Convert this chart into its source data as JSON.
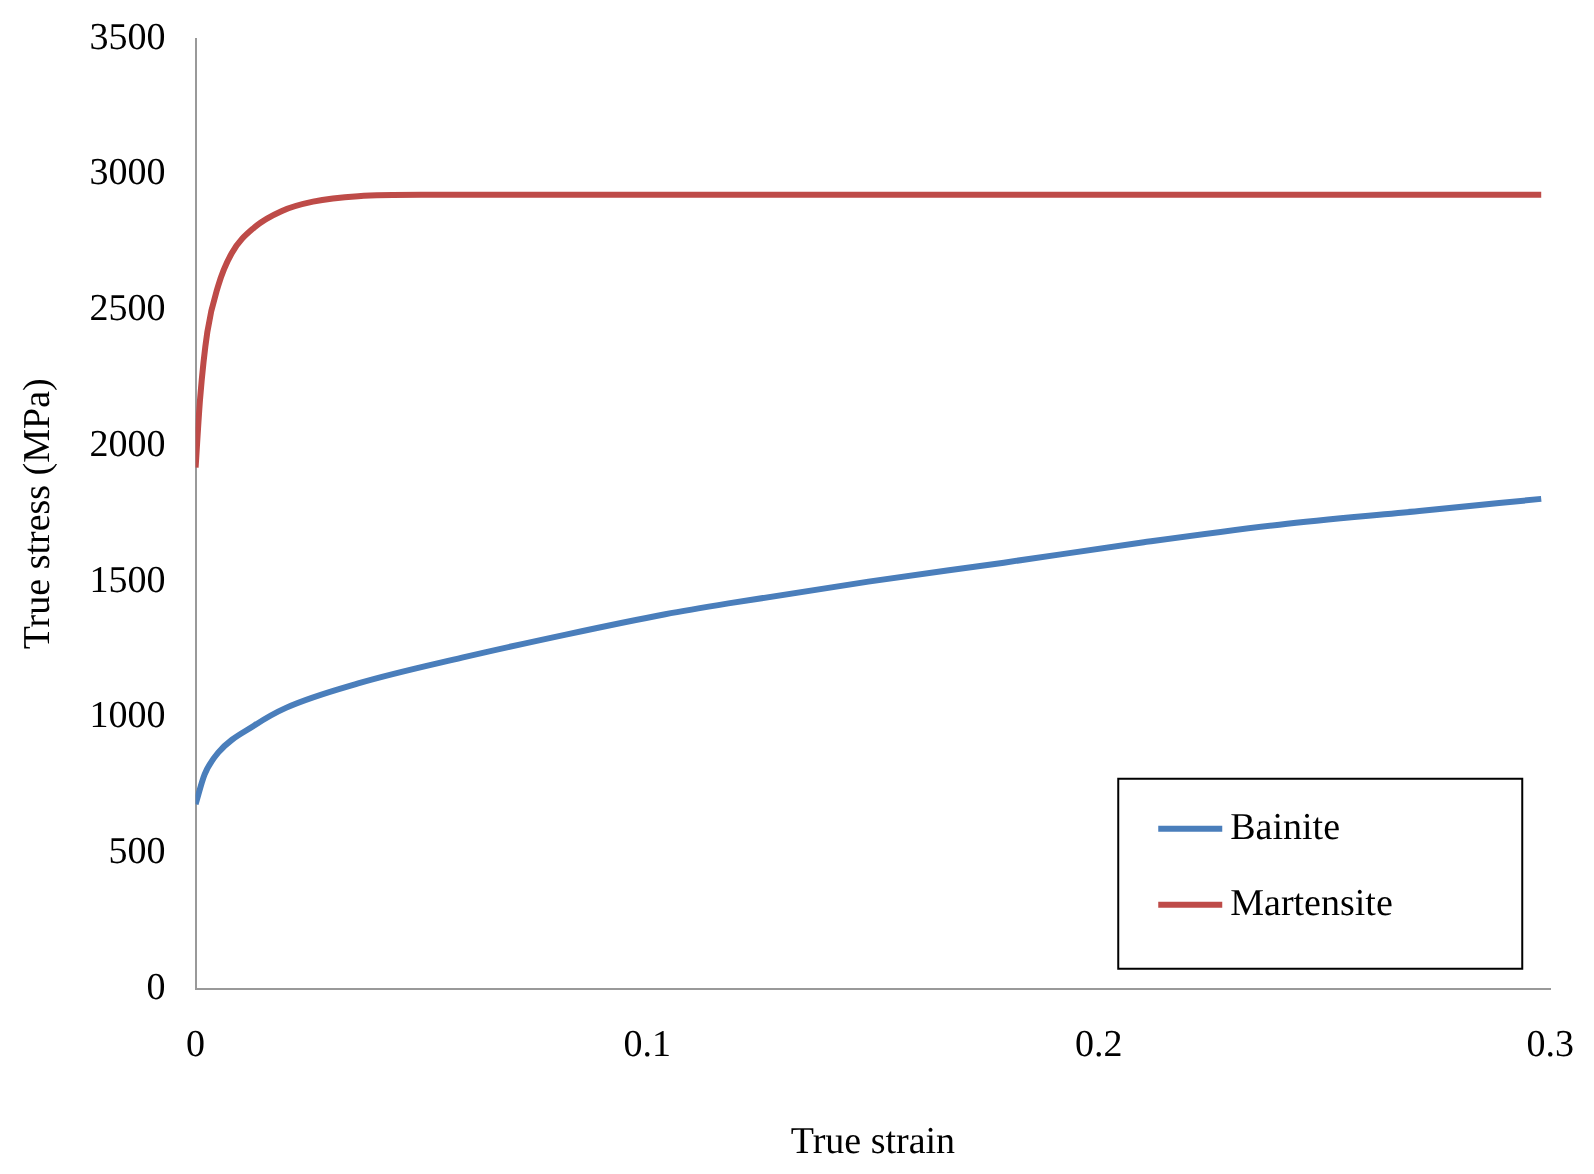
{
  "chart_data": {
    "type": "line",
    "xlabel": "True strain",
    "ylabel": "True stress (MPa)",
    "xlim": [
      0,
      0.3
    ],
    "xticks": [
      0,
      0.1,
      0.2,
      0.3
    ],
    "ylim": [
      0,
      3500
    ],
    "yticks": [
      0,
      500,
      1000,
      1500,
      2000,
      2500,
      3000,
      3500
    ],
    "grid": false,
    "legend": "bottom right",
    "marker": "none",
    "line_style": "solid",
    "series": [
      {
        "name": "Bainite",
        "color": "#4a7ebb",
        "x": [
          0,
          0.002,
          0.005,
          0.013,
          0.02,
          0.036,
          0.059,
          0.082,
          0.104,
          0.118,
          0.149,
          0.179,
          0.21,
          0.24,
          0.271,
          0.298
        ],
        "values": [
          680,
          790,
          870,
          970,
          1035,
          1125,
          1220,
          1305,
          1380,
          1420,
          1500,
          1570,
          1645,
          1710,
          1760,
          1805
        ]
      },
      {
        "name": "Martensite",
        "color": "#be4b48",
        "x": [
          0,
          0.001,
          0.0026,
          0.005,
          0.008,
          0.013,
          0.019,
          0.026,
          0.036,
          0.05,
          0.1,
          0.2,
          0.298
        ],
        "values": [
          1920,
          2175,
          2420,
          2590,
          2710,
          2805,
          2865,
          2900,
          2920,
          2925,
          2925,
          2925,
          2925
        ]
      }
    ]
  }
}
